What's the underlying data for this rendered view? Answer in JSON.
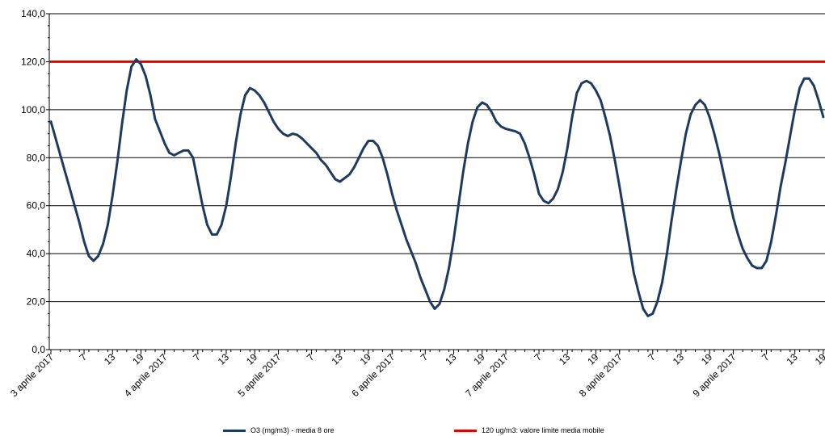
{
  "chart_data": {
    "type": "line",
    "ylim": [
      0,
      140
    ],
    "y_ticks": [
      "0,0",
      "20,0",
      "40,0",
      "60,0",
      "80,0",
      "100,0",
      "120,0",
      "140,0"
    ],
    "x_tick_labels": [
      "3 aprile 2017",
      "7",
      "13",
      "19",
      "4 aprile 2017",
      "7",
      "13",
      "19",
      "5 aprile 2017",
      "7",
      "13",
      "19",
      "6 aprile 2017",
      "7",
      "13",
      "19",
      "7 aprile 2017",
      "7",
      "13",
      "19",
      "8 aprile 2017",
      "7",
      "13",
      "19",
      "9 aprile 2017",
      "7",
      "13",
      "19"
    ],
    "grid": "horizontal",
    "legend_position": "bottom",
    "series": [
      {
        "name": "O3 (mg/m3) - media 8 ore",
        "color": "#1f3a5f",
        "values": [
          95,
          88,
          81,
          74,
          67,
          60,
          53,
          45,
          39,
          37,
          39,
          44,
          52,
          64,
          78,
          94,
          108,
          118,
          121,
          119,
          114,
          106,
          96,
          91,
          86,
          82,
          81,
          82,
          83,
          83,
          80,
          70,
          60,
          52,
          48,
          48,
          52,
          60,
          72,
          86,
          98,
          106,
          109,
          108,
          106,
          103,
          99,
          95,
          92,
          90,
          89,
          90,
          89.5,
          88,
          86,
          84,
          82,
          79,
          77,
          74,
          71,
          70,
          71.5,
          73,
          76,
          80,
          84,
          87,
          87,
          85,
          80,
          73,
          65,
          58,
          52,
          46,
          41,
          36,
          30,
          25,
          20,
          17,
          19,
          25,
          34,
          46,
          60,
          74,
          86,
          95,
          101,
          103,
          102,
          99,
          95,
          93,
          92,
          91.5,
          91,
          90,
          86,
          80,
          73,
          65,
          62,
          61,
          63,
          67,
          74,
          84,
          97,
          107,
          111,
          112,
          111,
          108,
          104,
          97,
          89,
          79,
          68,
          56,
          44,
          32,
          24,
          17,
          14,
          15,
          20,
          28,
          40,
          54,
          67,
          79,
          90,
          98,
          102,
          104,
          102,
          97,
          90,
          82,
          73,
          64,
          55,
          48,
          42,
          38,
          35,
          34,
          34,
          37,
          45,
          56,
          68,
          78,
          89,
          100,
          109,
          113,
          113,
          110,
          104,
          97
        ]
      },
      {
        "name": "120 ug/m3: valore limite media mobile",
        "color": "#e00000",
        "constant": 120
      }
    ]
  }
}
